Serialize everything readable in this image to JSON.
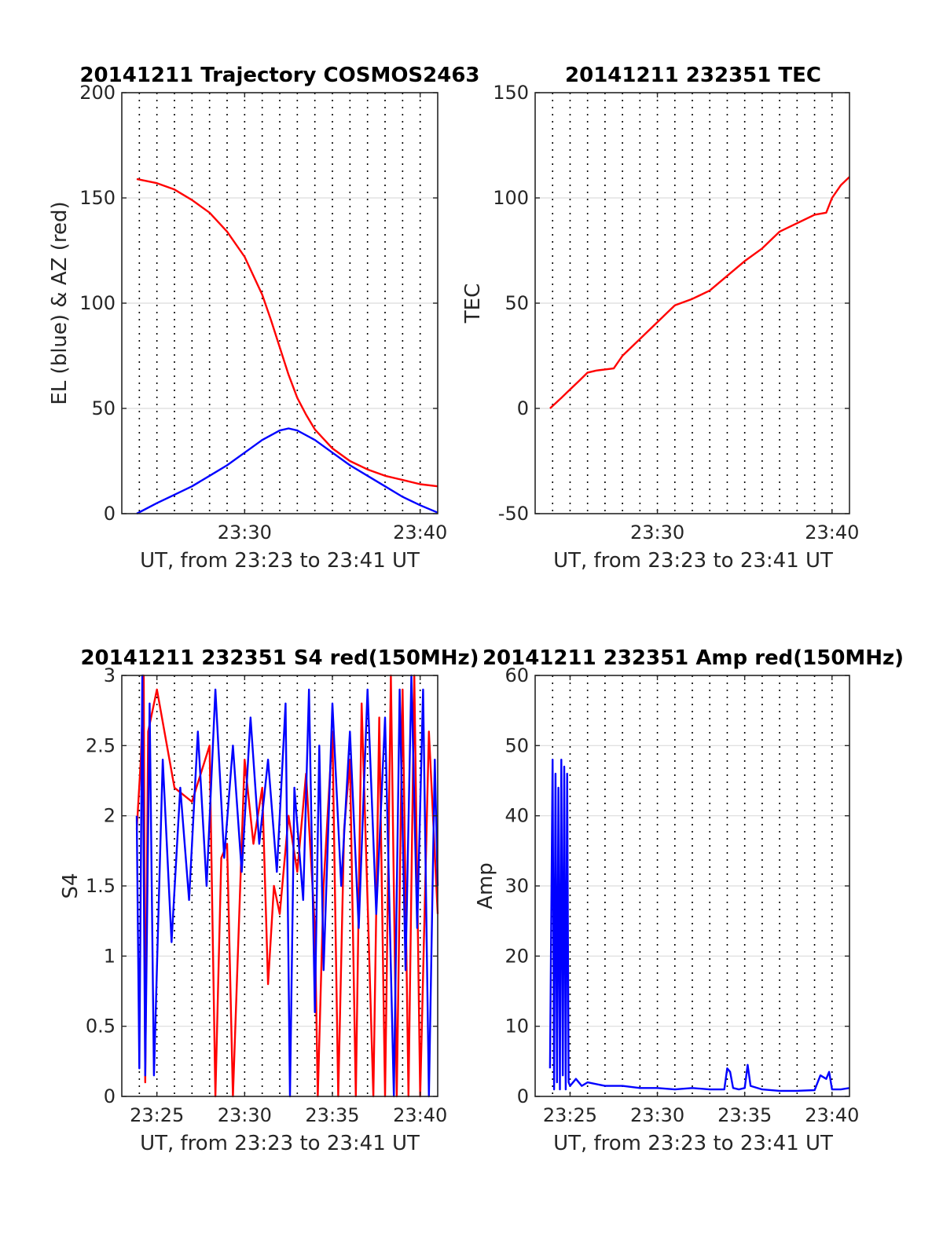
{
  "figure": {
    "xlabel": "UT, from 23:23 to 23:41 UT"
  },
  "colors": {
    "el": "#0000ff",
    "az": "#ff0000",
    "tec": "#ff0000",
    "s4_red": "#ff0000",
    "s4_blue": "#0000ff",
    "amp": "#0000ff"
  },
  "chart_data": [
    {
      "type": "line",
      "title": "20141211 Trajectory COSMOS2463",
      "xlabel": "UT, from 23:23 to 23:41 UT",
      "ylabel": "EL (blue) & AZ (red)",
      "xlim": [
        "23:23:00",
        "23:41:00"
      ],
      "ylim": [
        0,
        200
      ],
      "yticks": [
        0,
        50,
        100,
        150,
        200
      ],
      "xticks": [
        "23:30",
        "23:40"
      ],
      "grid": true,
      "series": [
        {
          "key": "az",
          "color": "#ff0000",
          "x": [
            "23:23:51",
            "23:25:00",
            "23:26:00",
            "23:27:00",
            "23:28:00",
            "23:29:00",
            "23:30:00",
            "23:31:00",
            "23:31:30",
            "23:32:00",
            "23:32:30",
            "23:33:00",
            "23:33:30",
            "23:34:00",
            "23:35:00",
            "23:36:00",
            "23:37:00",
            "23:38:00",
            "23:39:00",
            "23:40:00",
            "23:41:00"
          ],
          "y": [
            159,
            157,
            154,
            149,
            143,
            134,
            122,
            104,
            92,
            79,
            66,
            55,
            47,
            40,
            31,
            25,
            21,
            18,
            16,
            14,
            13
          ]
        },
        {
          "key": "el",
          "color": "#0000ff",
          "x": [
            "23:23:51",
            "23:25:00",
            "23:26:00",
            "23:27:00",
            "23:28:00",
            "23:29:00",
            "23:30:00",
            "23:31:00",
            "23:32:00",
            "23:32:30",
            "23:33:00",
            "23:34:00",
            "23:35:00",
            "23:36:00",
            "23:37:00",
            "23:38:00",
            "23:39:00",
            "23:40:00",
            "23:41:00"
          ],
          "y": [
            0,
            5,
            9,
            13,
            18,
            23,
            29,
            35,
            39.5,
            40.5,
            39.5,
            35,
            29,
            23,
            18,
            13,
            8,
            4,
            0.5
          ]
        }
      ]
    },
    {
      "type": "line",
      "title": "20141211 232351 TEC",
      "xlabel": "UT, from 23:23 to 23:41 UT",
      "ylabel": "TEC",
      "xlim": [
        "23:23:00",
        "23:41:00"
      ],
      "ylim": [
        -50,
        150
      ],
      "yticks": [
        -50,
        0,
        50,
        100,
        150
      ],
      "xticks": [
        "23:30",
        "23:40"
      ],
      "grid": true,
      "series": [
        {
          "key": "tec",
          "color": "#ff0000",
          "x": [
            "23:23:51",
            "23:24:30",
            "23:25:00",
            "23:25:30",
            "23:26:00",
            "23:26:30",
            "23:27:00",
            "23:27:30",
            "23:28:00",
            "23:29:00",
            "23:30:00",
            "23:30:30",
            "23:31:00",
            "23:32:00",
            "23:33:00",
            "23:34:00",
            "23:35:00",
            "23:36:00",
            "23:37:00",
            "23:38:00",
            "23:39:00",
            "23:39:40",
            "23:40:00",
            "23:40:30",
            "23:41:00"
          ],
          "y": [
            0,
            5,
            9,
            13,
            17,
            18,
            18.5,
            19,
            25,
            33,
            41,
            45,
            49,
            52,
            56,
            63,
            70,
            76,
            84,
            88,
            92,
            93,
            100,
            106,
            110
          ]
        }
      ]
    },
    {
      "type": "line",
      "title": "20141211 232351 S4 red(150MHz)",
      "xlabel": "UT, from 23:23 to 23:41 UT",
      "ylabel": "S4",
      "xlim": [
        "23:23:00",
        "23:41:00"
      ],
      "ylim": [
        0,
        3
      ],
      "yticks": [
        0,
        0.5,
        1,
        1.5,
        2,
        2.5,
        3
      ],
      "xticks": [
        "23:25",
        "23:30",
        "23:35",
        "23:40"
      ],
      "grid": true,
      "series": [
        {
          "key": "s4_red",
          "color": "#ff0000",
          "x": [
            "23:23:51",
            "23:24:05",
            "23:24:15",
            "23:24:20",
            "23:24:30",
            "23:25:00",
            "23:26:00",
            "23:27:00",
            "23:28:00",
            "23:28:20",
            "23:28:40",
            "23:29:00",
            "23:29:20",
            "23:30:00",
            "23:30:30",
            "23:31:00",
            "23:31:20",
            "23:31:40",
            "23:32:00",
            "23:32:30",
            "23:33:00",
            "23:33:30",
            "23:34:00",
            "23:34:10",
            "23:34:30",
            "23:35:00",
            "23:35:20",
            "23:35:40",
            "23:36:00",
            "23:36:20",
            "23:36:40",
            "23:37:00",
            "23:37:20",
            "23:37:40",
            "23:38:00",
            "23:38:20",
            "23:38:40",
            "23:39:00",
            "23:39:20",
            "23:39:40",
            "23:40:00",
            "23:40:30",
            "23:41:00"
          ],
          "y": [
            1.9,
            2.4,
            3.0,
            0.1,
            2.6,
            2.9,
            2.2,
            2.1,
            2.5,
            0.0,
            1.7,
            1.8,
            0.0,
            2.4,
            1.8,
            2.2,
            0.8,
            1.5,
            1.3,
            2.0,
            1.6,
            2.3,
            1.2,
            0.0,
            1.5,
            2.6,
            0.0,
            1.9,
            2.4,
            0.0,
            2.8,
            1.4,
            0.0,
            2.7,
            0.0,
            3.0,
            0.0,
            2.9,
            0.0,
            3.0,
            0.0,
            2.6,
            1.3
          ]
        },
        {
          "key": "s4_blue",
          "color": "#0000ff",
          "x": [
            "23:23:51",
            "23:24:00",
            "23:24:10",
            "23:24:20",
            "23:24:35",
            "23:24:50",
            "23:25:20",
            "23:25:50",
            "23:26:20",
            "23:26:50",
            "23:27:20",
            "23:27:50",
            "23:28:20",
            "23:28:50",
            "23:29:20",
            "23:29:50",
            "23:30:20",
            "23:30:50",
            "23:31:20",
            "23:31:50",
            "23:32:20",
            "23:32:35",
            "23:32:50",
            "23:33:20",
            "23:33:40",
            "23:34:00",
            "23:34:15",
            "23:34:30",
            "23:35:00",
            "23:35:30",
            "23:36:00",
            "23:36:30",
            "23:37:00",
            "23:37:30",
            "23:38:00",
            "23:38:30",
            "23:38:50",
            "23:39:10",
            "23:39:30",
            "23:39:50",
            "23:40:10",
            "23:40:30",
            "23:40:50",
            "23:41:00"
          ],
          "y": [
            2.0,
            0.2,
            3.0,
            0.15,
            2.8,
            0.15,
            2.4,
            1.1,
            2.2,
            1.4,
            2.6,
            1.5,
            2.9,
            1.7,
            2.5,
            1.6,
            2.7,
            1.8,
            2.4,
            1.6,
            2.8,
            0.0,
            2.2,
            1.4,
            2.9,
            0.6,
            2.5,
            0.9,
            2.8,
            1.5,
            2.6,
            1.2,
            2.9,
            1.3,
            2.7,
            0.0,
            2.9,
            0.9,
            3.0,
            1.2,
            2.9,
            0.0,
            2.4,
            1.5
          ]
        }
      ]
    },
    {
      "type": "line",
      "title": "20141211 232351 Amp red(150MHz)",
      "xlabel": "UT, from 23:23 to 23:41 UT",
      "ylabel": "Amp",
      "xlim": [
        "23:23:00",
        "23:41:00"
      ],
      "ylim": [
        0,
        60
      ],
      "yticks": [
        0,
        10,
        20,
        30,
        40,
        50,
        60
      ],
      "xticks": [
        "23:25",
        "23:30",
        "23:35",
        "23:40"
      ],
      "grid": true,
      "series": [
        {
          "key": "amp",
          "color": "#0000ff",
          "x": [
            "23:23:51",
            "23:24:00",
            "23:24:05",
            "23:24:10",
            "23:24:15",
            "23:24:20",
            "23:24:25",
            "23:24:30",
            "23:24:35",
            "23:24:40",
            "23:24:45",
            "23:24:50",
            "23:24:55",
            "23:25:00",
            "23:25:20",
            "23:25:40",
            "23:26:00",
            "23:27:00",
            "23:28:00",
            "23:29:00",
            "23:30:00",
            "23:31:00",
            "23:32:00",
            "23:33:00",
            "23:33:50",
            "23:34:00",
            "23:34:10",
            "23:34:20",
            "23:34:40",
            "23:35:00",
            "23:35:10",
            "23:35:20",
            "23:36:00",
            "23:37:00",
            "23:38:00",
            "23:39:00",
            "23:39:20",
            "23:39:40",
            "23:39:50",
            "23:40:00",
            "23:40:30",
            "23:41:00"
          ],
          "y": [
            4,
            48,
            1,
            46,
            2,
            44,
            1,
            48,
            3,
            47,
            1,
            46,
            2,
            1.5,
            2.5,
            1.5,
            2,
            1.5,
            1.5,
            1.2,
            1.2,
            1.0,
            1.2,
            1.0,
            1.0,
            4,
            3.5,
            1.2,
            1.0,
            1.2,
            4.5,
            1.5,
            1.0,
            0.8,
            0.8,
            0.9,
            3,
            2.5,
            3.5,
            1.0,
            1.0,
            1.2
          ]
        }
      ]
    }
  ]
}
